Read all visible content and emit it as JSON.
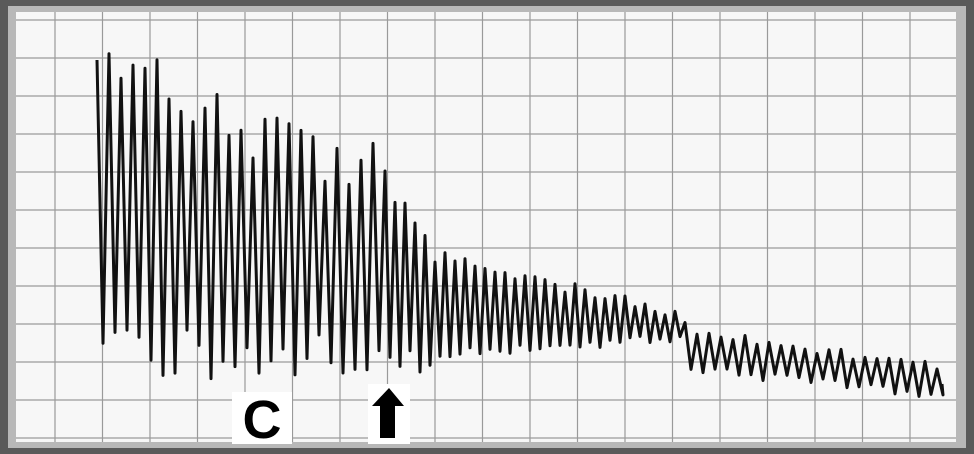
{
  "label": "C"
}
